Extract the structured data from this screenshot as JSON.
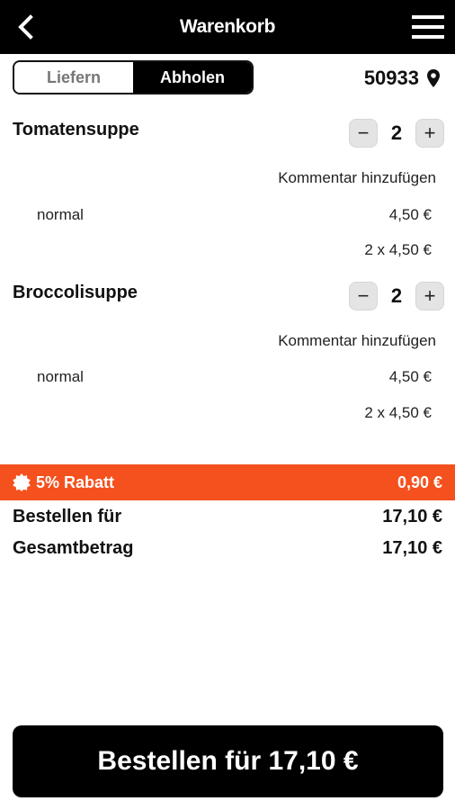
{
  "header": {
    "title": "Warenkorb",
    "back_icon": "chevron-left-icon",
    "menu_icon": "hamburger-menu-icon"
  },
  "mode_toggle": {
    "options": [
      "Liefern",
      "Abholen"
    ],
    "selected": "Abholen"
  },
  "location": {
    "zip": "50933",
    "icon": "map-pin-icon"
  },
  "cart_items": [
    {
      "name": "Tomatensuppe",
      "quantity": "2",
      "comment_link": "Kommentar hinzufügen",
      "variant": "normal",
      "unit_price": "4,50 €",
      "line_total": "2 x 4,50 €"
    },
    {
      "name": "Broccolisuppe",
      "quantity": "2",
      "comment_link": "Kommentar hinzufügen",
      "variant": "normal",
      "unit_price": "4,50 €",
      "line_total": "2 x 4,50 €"
    }
  ],
  "stepper": {
    "minus": "−",
    "plus": "+"
  },
  "discount": {
    "label": "5% Rabatt",
    "amount": "0,90 €",
    "icon": "badge-icon",
    "color": "#f4511e"
  },
  "summary": {
    "order_for_label": "Bestellen für",
    "order_for_value": "17,10 €",
    "total_label": "Gesamtbetrag",
    "total_value": "17,10 €"
  },
  "order_button": {
    "label": "Bestellen für 17,10 €"
  }
}
